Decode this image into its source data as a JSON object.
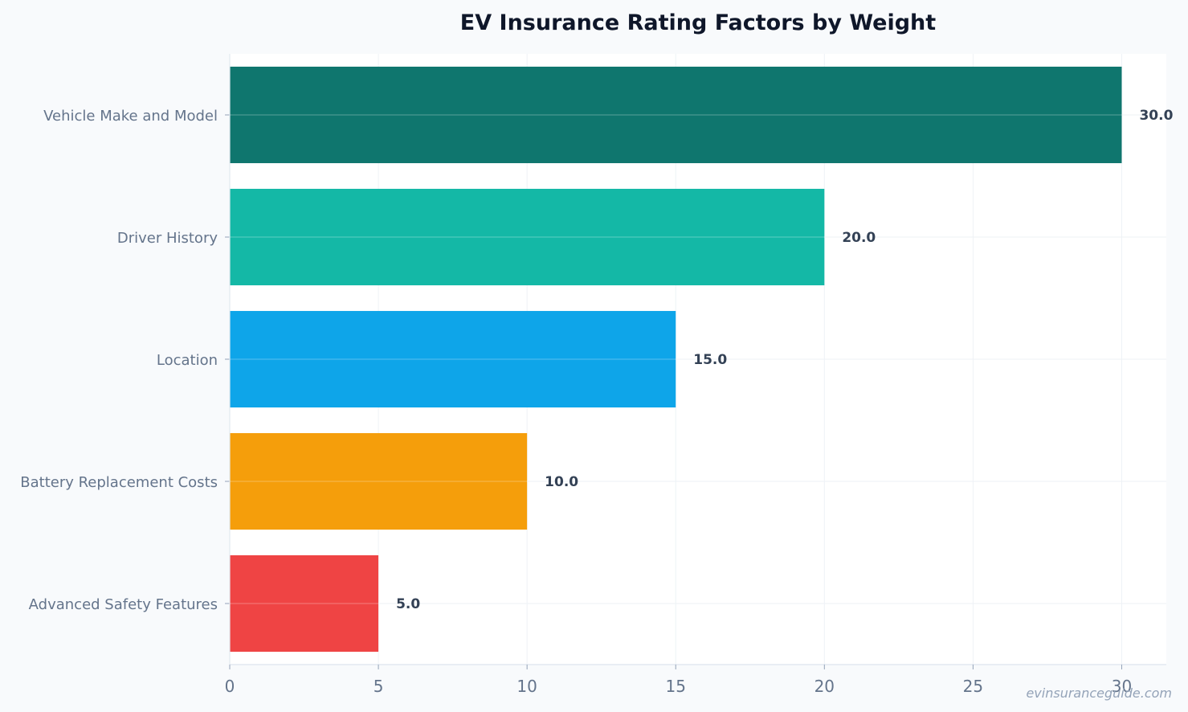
{
  "chart_data": {
    "type": "bar",
    "orientation": "horizontal",
    "title": "EV Insurance Rating Factors by Weight",
    "xlabel": "",
    "ylabel": "",
    "categories": [
      "Vehicle Make and Model",
      "Driver History",
      "Location",
      "Battery Replacement Costs",
      "Advanced Safety Features"
    ],
    "values": [
      30,
      20,
      15,
      10,
      5
    ],
    "value_labels": [
      "30.0",
      "20.0",
      "15.0",
      "10.0",
      "5.0"
    ],
    "bar_colors": [
      "#0f766e",
      "#14b8a6",
      "#0ea5e9",
      "#f59e0b",
      "#ef4444"
    ],
    "xlim": [
      0,
      31.5
    ],
    "xticks": [
      0,
      5,
      10,
      15,
      20,
      25,
      30
    ],
    "xtick_labels": [
      "0",
      "5",
      "10",
      "15",
      "20",
      "25",
      "30"
    ],
    "grid": true,
    "legend": "none"
  },
  "watermark": "evinsuranceguide.com"
}
